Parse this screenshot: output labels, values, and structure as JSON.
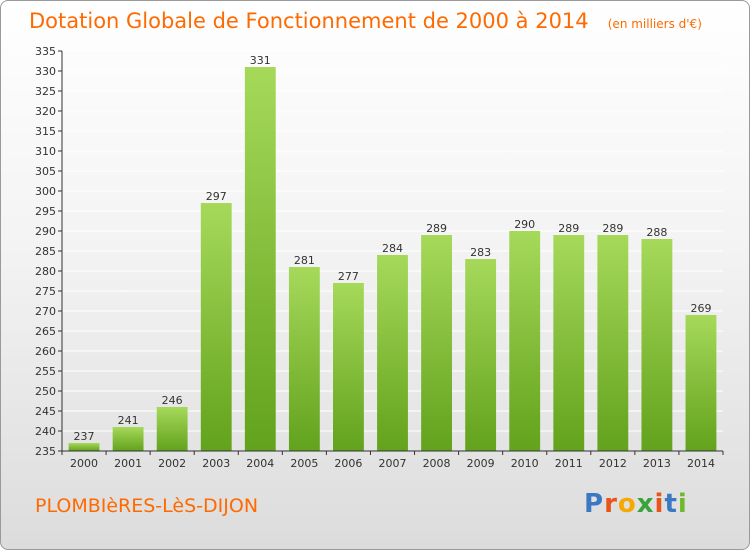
{
  "title": "Dotation Globale de Fonctionnement de 2000 à 2014",
  "unit": "(en milliers d'€)",
  "commune": "PLOMBIèRES-LèS-DIJON",
  "brand": "Proxiti",
  "colors": {
    "title": "#ff6a00",
    "bar_light": "#a6d95a",
    "bar_dark": "#62a21c",
    "grid": "#ffffff",
    "axis": "#333333"
  },
  "chart_data": {
    "type": "bar",
    "title": "Dotation Globale de Fonctionnement de 2000 à 2014",
    "xlabel": "",
    "ylabel": "",
    "categories": [
      "2000",
      "2001",
      "2002",
      "2003",
      "2004",
      "2005",
      "2006",
      "2007",
      "2008",
      "2009",
      "2010",
      "2011",
      "2012",
      "2013",
      "2014"
    ],
    "values": [
      237,
      241,
      246,
      297,
      331,
      281,
      277,
      284,
      289,
      283,
      290,
      289,
      289,
      288,
      269
    ],
    "ylim": [
      235,
      335
    ],
    "yticks": [
      235,
      240,
      245,
      250,
      255,
      260,
      265,
      270,
      275,
      280,
      285,
      290,
      295,
      300,
      305,
      310,
      315,
      320,
      325,
      330,
      335
    ],
    "grid": true,
    "data_labels": true
  }
}
